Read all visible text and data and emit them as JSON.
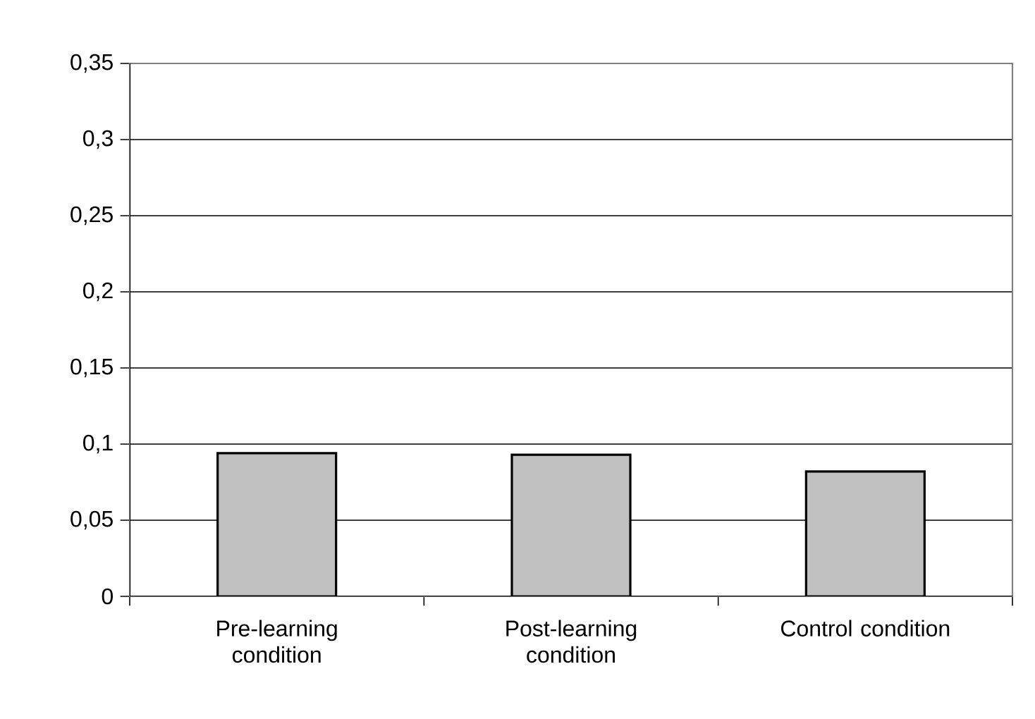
{
  "chart_data": {
    "type": "bar",
    "categories": [
      "Pre-learning condition",
      "Post-learning condition",
      "Control condition"
    ],
    "values": [
      0.094,
      0.093,
      0.082
    ],
    "color": "#c0c0c0",
    "ylim": [
      0,
      0.35
    ],
    "yticks": [
      {
        "value": 0,
        "label": "0"
      },
      {
        "value": 0.05,
        "label": "0,05"
      },
      {
        "value": 0.1,
        "label": "0,1"
      },
      {
        "value": 0.15,
        "label": "0,15"
      },
      {
        "value": 0.2,
        "label": "0,2"
      },
      {
        "value": 0.25,
        "label": "0,25"
      },
      {
        "value": 0.3,
        "label": "0,3"
      },
      {
        "value": 0.35,
        "label": "0,35"
      }
    ],
    "grid": "y"
  }
}
